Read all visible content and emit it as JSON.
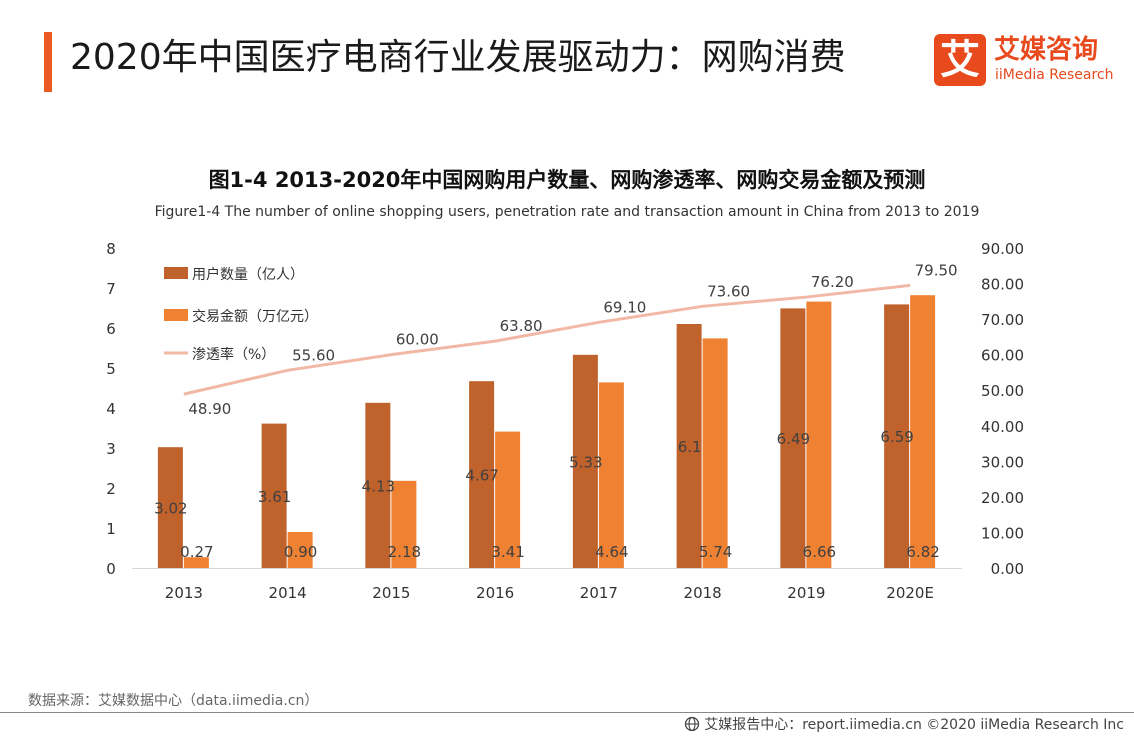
{
  "header": {
    "title": "2020年中国医疗电商行业发展驱动力：网购消费",
    "logo_mark": "艾",
    "logo_cn": "艾媒咨询",
    "logo_en": "iiMedia Research"
  },
  "colors": {
    "accent": "#ee5a24",
    "users": "#c0622b",
    "amount": "#ef8133",
    "penetration": "#f2b8a6"
  },
  "chart_data": {
    "type": "bar",
    "title": "图1-4 2013-2020年中国网购用户数量、网购渗透率、网购交易金额及预测",
    "subtitle": "Figure1-4 The number of online shopping users, penetration rate and transaction amount in China from 2013 to 2019",
    "categories": [
      "2013",
      "2014",
      "2015",
      "2016",
      "2017",
      "2018",
      "2019",
      "2020E"
    ],
    "series": [
      {
        "name": "用户数量（亿人）",
        "axis": "left",
        "type": "bar",
        "values": [
          3.02,
          3.61,
          4.13,
          4.67,
          5.33,
          6.1,
          6.49,
          6.59
        ],
        "labels": [
          "3.02",
          "3.61",
          "4.13",
          "4.67",
          "5.33",
          "6.1",
          "6.49",
          "6.59"
        ]
      },
      {
        "name": "交易金额（万亿元）",
        "axis": "left",
        "type": "bar",
        "values": [
          0.27,
          0.9,
          2.18,
          3.41,
          4.64,
          5.74,
          6.66,
          6.82
        ],
        "labels": [
          "0.27",
          "0.90",
          "2.18",
          "3.41",
          "4.64",
          "5.74",
          "6.66",
          "6.82"
        ]
      },
      {
        "name": "渗透率（%）",
        "axis": "right",
        "type": "line",
        "values": [
          48.9,
          55.6,
          60.0,
          63.8,
          69.1,
          73.6,
          76.2,
          79.5
        ],
        "labels": [
          "48.90",
          "55.60",
          "60.00",
          "63.80",
          "69.10",
          "73.60",
          "76.20",
          "79.50"
        ]
      }
    ],
    "ylim_left": [
      0,
      8
    ],
    "yticks_left": [
      "0",
      "1",
      "2",
      "3",
      "4",
      "5",
      "6",
      "7",
      "8"
    ],
    "ylim_right": [
      0,
      90
    ],
    "yticks_right": [
      "0.00",
      "10.00",
      "20.00",
      "30.00",
      "40.00",
      "50.00",
      "60.00",
      "70.00",
      "80.00",
      "90.00"
    ],
    "legend": "top-left",
    "grid": false
  },
  "footer": {
    "source": "数据来源：艾媒数据中心（data.iimedia.cn）",
    "credit": "艾媒报告中心：report.iimedia.cn  ©2020  iiMedia Research  Inc"
  }
}
